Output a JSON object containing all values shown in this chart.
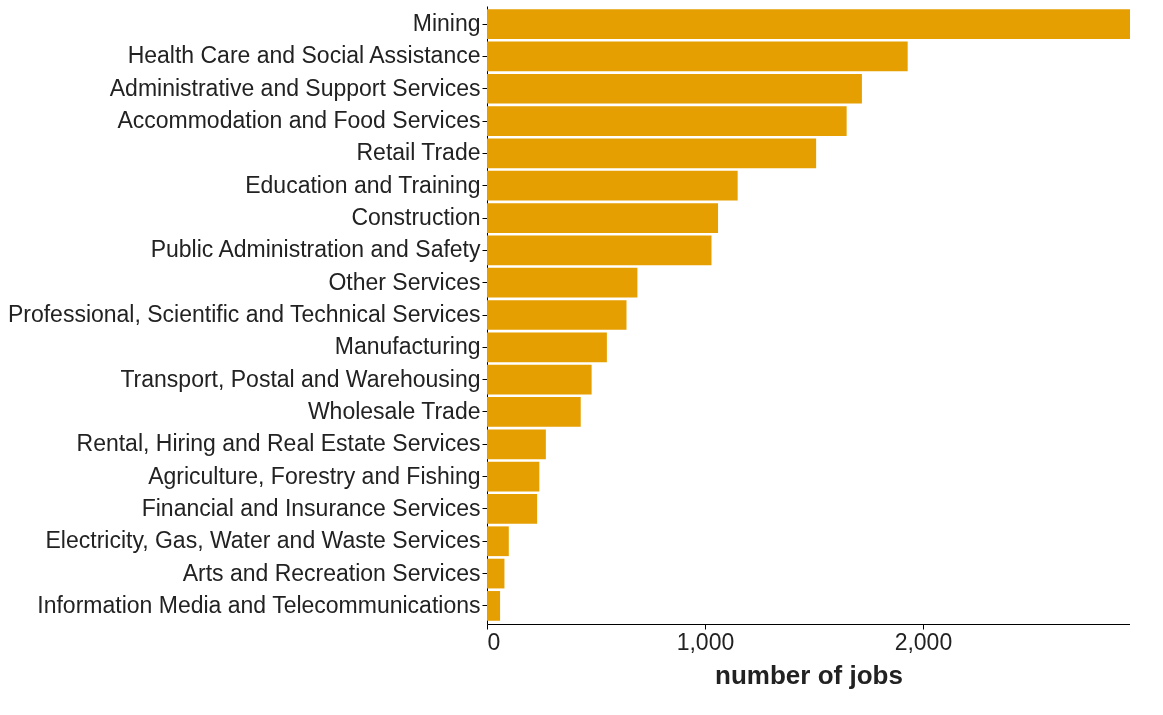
{
  "chart_data": {
    "type": "bar",
    "orientation": "horizontal",
    "xlabel": "number of jobs",
    "categories": [
      "Mining",
      "Health Care and Social Assistance",
      "Administrative and Support Services",
      "Accommodation and Food Services",
      "Retail Trade",
      "Education and Training",
      "Construction",
      "Public Administration and Safety",
      "Other Services",
      "Professional, Scientific and Technical Services",
      "Manufacturing",
      "Transport, Postal and Warehousing",
      "Wholesale Trade",
      "Rental, Hiring and Real Estate Services",
      "Agriculture, Forestry and Fishing",
      "Financial and Insurance Services",
      "Electricity, Gas, Water and Waste Services",
      "Arts and Recreation Services",
      "Information Media and Telecommunications"
    ],
    "values": [
      2950,
      1930,
      1720,
      1650,
      1510,
      1150,
      1060,
      1030,
      690,
      640,
      550,
      480,
      430,
      270,
      240,
      230,
      100,
      80,
      60
    ],
    "color": "#e69f00",
    "xlim": [
      0,
      2950
    ],
    "xticks": [
      0,
      {
        "value": 1000,
        "label": "1,000"
      },
      {
        "value": 2000,
        "label": "2,000"
      }
    ],
    "grid": false
  }
}
